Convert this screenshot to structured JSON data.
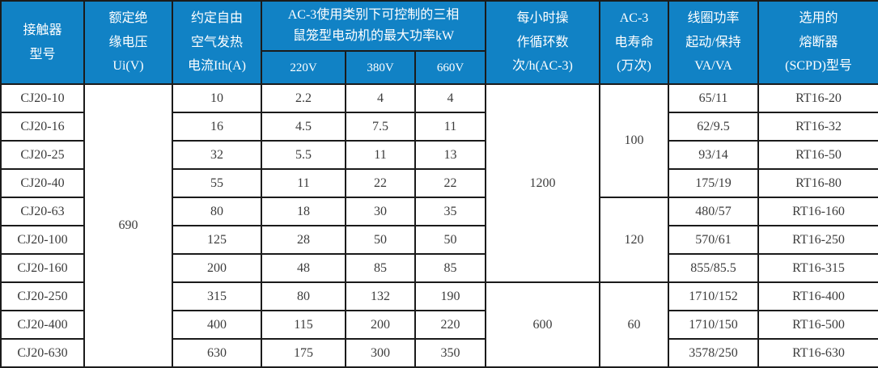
{
  "colors": {
    "header_bg": "#1182c5",
    "header_text": "#ffffff",
    "body_text": "#3c3c3c",
    "border": "#1b1b1b",
    "body_bg": "#ffffff"
  },
  "table": {
    "header": {
      "model": "接触器\n型号",
      "ui": "额定绝\n缘电压\nUi(V)",
      "ith": "约定自由\n空气发热\n电流Ith(A)",
      "kw_group": "AC-3使用类别下可控制的三相\n鼠笼型电动机的最大功率kW",
      "kw220": "220V",
      "kw380": "380V",
      "kw660": "660V",
      "cycles": "每小时操\n作循环数\n次/h(AC-3)",
      "life": "AC-3\n电寿命\n(万次)",
      "coil": "线圈功率\n起动/保持\nVA/VA",
      "fuse": "选用的\n熔断器\n(SCPD)型号"
    },
    "rows": [
      {
        "model": "CJ20-10",
        "ith": "10",
        "kw220": "2.2",
        "kw380": "4",
        "kw660": "4",
        "coil": "65/11",
        "fuse": "RT16-20",
        "ui": {
          "value": "690",
          "rowspan": 10
        },
        "cycles": {
          "value": "1200",
          "rowspan": 7
        },
        "life": {
          "value": "100",
          "rowspan": 4
        }
      },
      {
        "model": "CJ20-16",
        "ith": "16",
        "kw220": "4.5",
        "kw380": "7.5",
        "kw660": "11",
        "coil": "62/9.5",
        "fuse": "RT16-32"
      },
      {
        "model": "CJ20-25",
        "ith": "32",
        "kw220": "5.5",
        "kw380": "11",
        "kw660": "13",
        "coil": "93/14",
        "fuse": "RT16-50"
      },
      {
        "model": "CJ20-40",
        "ith": "55",
        "kw220": "11",
        "kw380": "22",
        "kw660": "22",
        "coil": "175/19",
        "fuse": "RT16-80"
      },
      {
        "model": "CJ20-63",
        "ith": "80",
        "kw220": "18",
        "kw380": "30",
        "kw660": "35",
        "coil": "480/57",
        "fuse": "RT16-160",
        "life": {
          "value": "120",
          "rowspan": 3
        }
      },
      {
        "model": "CJ20-100",
        "ith": "125",
        "kw220": "28",
        "kw380": "50",
        "kw660": "50",
        "coil": "570/61",
        "fuse": "RT16-250"
      },
      {
        "model": "CJ20-160",
        "ith": "200",
        "kw220": "48",
        "kw380": "85",
        "kw660": "85",
        "coil": "855/85.5",
        "fuse": "RT16-315"
      },
      {
        "model": "CJ20-250",
        "ith": "315",
        "kw220": "80",
        "kw380": "132",
        "kw660": "190",
        "coil": "1710/152",
        "fuse": "RT16-400",
        "cycles": {
          "value": "600",
          "rowspan": 3
        },
        "life": {
          "value": "60",
          "rowspan": 3
        }
      },
      {
        "model": "CJ20-400",
        "ith": "400",
        "kw220": "115",
        "kw380": "200",
        "kw660": "220",
        "coil": "1710/150",
        "fuse": "RT16-500"
      },
      {
        "model": "CJ20-630",
        "ith": "630",
        "kw220": "175",
        "kw380": "300",
        "kw660": "350",
        "coil": "3578/250",
        "fuse": "RT16-630"
      }
    ]
  }
}
